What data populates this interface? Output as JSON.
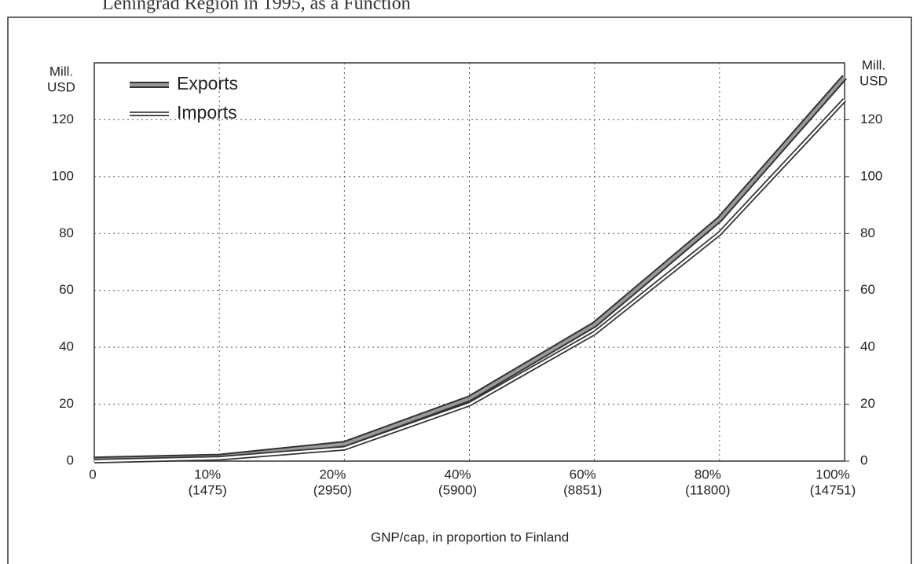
{
  "chart_data": {
    "type": "line",
    "title": "Leningrad Region in 1995, as a Function",
    "categories": [
      [
        "0"
      ],
      [
        "10%",
        "(1475)"
      ],
      [
        "20%",
        "(2950)"
      ],
      [
        "40%",
        "(5900)"
      ],
      [
        "60%",
        "(8851)"
      ],
      [
        "80%",
        "(11800)"
      ],
      [
        "100%",
        "(14751)"
      ]
    ],
    "series": [
      {
        "name": "Exports",
        "color": "#999999",
        "values": [
          0.5,
          1.5,
          6,
          22,
          48,
          85,
          135
        ]
      },
      {
        "name": "Imports",
        "color": "#ffffff",
        "values": [
          0,
          1,
          4.5,
          20,
          45,
          80,
          127
        ]
      }
    ],
    "ylim": [
      0,
      140
    ],
    "yticks": [
      0,
      20,
      40,
      60,
      80,
      100,
      120
    ],
    "y2lim": [
      0,
      140
    ],
    "y2ticks": [
      0,
      20,
      40,
      60,
      80,
      100,
      120
    ],
    "y_label": [
      "Mill.",
      "USD"
    ],
    "y2_label": [
      "Mill.",
      "USD"
    ],
    "x_label": "GNP/cap, in proportion to Finland",
    "grid": true,
    "legend": "upper left"
  }
}
